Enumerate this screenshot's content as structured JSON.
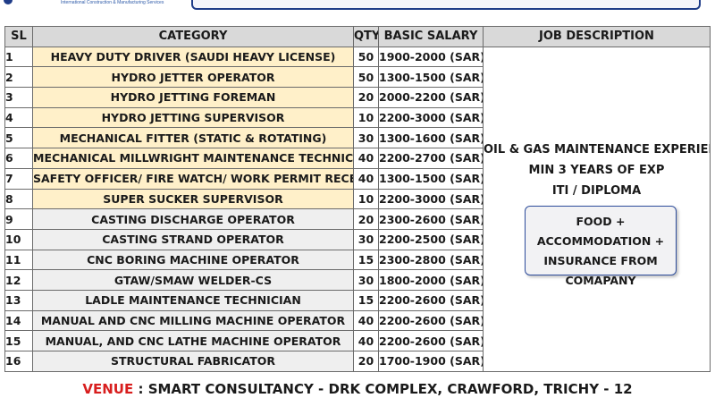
{
  "header": {
    "tagline": "International Construction & Manufacturing Services"
  },
  "table": {
    "columns": [
      "SL",
      "CATEGORY",
      "QTY",
      "BASIC SALARY",
      "JOB DESCRIPTION"
    ],
    "rows": [
      {
        "sl": "1",
        "category": "HEAVY DUTY DRIVER (SAUDI HEAVY LICENSE)",
        "qty": "50",
        "salary": "1900-2000 (SAR)"
      },
      {
        "sl": "2",
        "category": "HYDRO JETTER OPERATOR",
        "qty": "50",
        "salary": "1300-1500 (SAR)"
      },
      {
        "sl": "3",
        "category": "HYDRO JETTING FOREMAN",
        "qty": "20",
        "salary": "2000-2200 (SAR)"
      },
      {
        "sl": "4",
        "category": "HYDRO JETTING SUPERVISOR",
        "qty": "10",
        "salary": "2200-3000 (SAR)"
      },
      {
        "sl": "5",
        "category": "MECHANICAL FITTER (STATIC & ROTATING)",
        "qty": "30",
        "salary": "1300-1600 (SAR)"
      },
      {
        "sl": "6",
        "category": "MECHANICAL MILLWRIGHT MAINTENANCE TECHNICIAN",
        "qty": "40",
        "salary": "2200-2700 (SAR)"
      },
      {
        "sl": "7",
        "category": "SAFETY OFFICER/ FIRE WATCH/ WORK PERMIT RECEIVER",
        "qty": "40",
        "salary": "1300-1500 (SAR)"
      },
      {
        "sl": "8",
        "category": "SUPER SUCKER SUPERVISOR",
        "qty": "10",
        "salary": "2200-3000 (SAR)"
      },
      {
        "sl": "9",
        "category": "CASTING DISCHARGE OPERATOR",
        "qty": "20",
        "salary": "2300-2600 (SAR)"
      },
      {
        "sl": "10",
        "category": "CASTING STRAND OPERATOR",
        "qty": "30",
        "salary": "2200-2500 (SAR)"
      },
      {
        "sl": "11",
        "category": "CNC BORING MACHINE OPERATOR",
        "qty": "15",
        "salary": "2300-2800 (SAR)"
      },
      {
        "sl": "12",
        "category": "GTAW/SMAW WELDER-CS",
        "qty": "30",
        "salary": "1800-2000 (SAR)"
      },
      {
        "sl": "13",
        "category": "LADLE MAINTENANCE TECHNICIAN",
        "qty": "15",
        "salary": "2200-2600 (SAR)"
      },
      {
        "sl": "14",
        "category": "MANUAL AND CNC MILLING MACHINE OPERATOR",
        "qty": "40",
        "salary": "2200-2600 (SAR)"
      },
      {
        "sl": "15",
        "category": "MANUAL, AND CNC LATHE MACHINE OPERATOR",
        "qty": "40",
        "salary": "2200-2600 (SAR)"
      },
      {
        "sl": "16",
        "category": "STRUCTURAL FABRICATOR",
        "qty": "20",
        "salary": "1700-1900 (SAR)"
      }
    ],
    "description": {
      "lines": [
        "OIL & GAS MAINTENANCE EXPERIENCE",
        "MIN 3 YEARS OF EXP",
        "ITI / DIPLOMA"
      ],
      "perks_lines": [
        "FOOD + ACCOMMODATION +",
        "INSURANCE FROM",
        "COMAPANY"
      ]
    }
  },
  "venue": {
    "label": "VENUE",
    "separator": " : ",
    "address": "SMART CONSULTANCY - DRK COMPLEX, CRAWFORD, TRICHY - 12"
  },
  "colors": {
    "highlight_row": "#fff0c9",
    "grey_row": "#efefef",
    "header_bg": "#d9d9d9",
    "venue_label": "#d81e1e",
    "brand_blue": "#1f3c88"
  }
}
